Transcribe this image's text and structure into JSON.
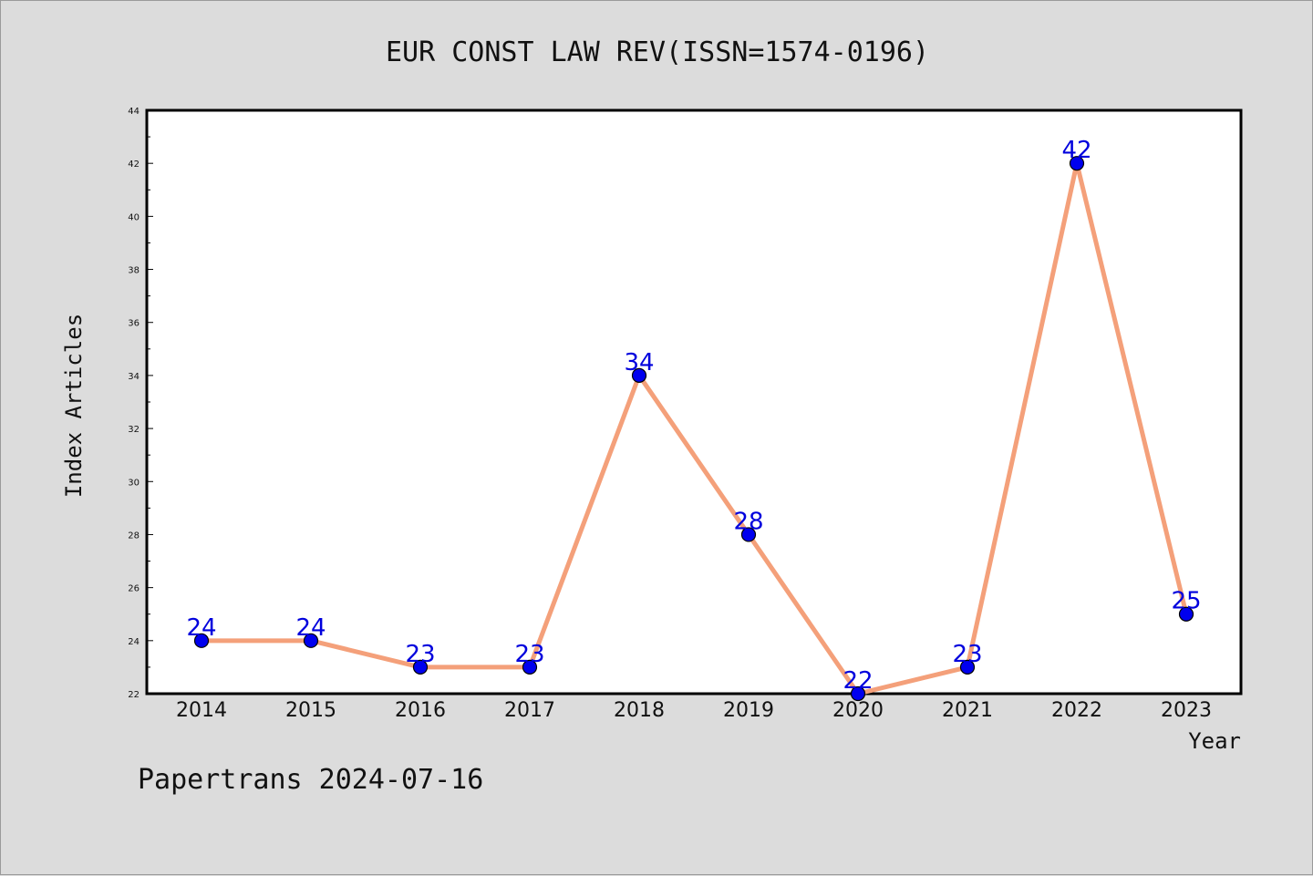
{
  "chart_data": {
    "type": "line",
    "title": "EUR CONST LAW REV(ISSN=1574-0196)",
    "xlabel": "Year",
    "ylabel": "Index Articles",
    "categories": [
      "2014",
      "2015",
      "2016",
      "2017",
      "2018",
      "2019",
      "2020",
      "2021",
      "2022",
      "2023"
    ],
    "series": [
      {
        "values": [
          24,
          24,
          23,
          23,
          34,
          28,
          22,
          23,
          42,
          25
        ]
      }
    ],
    "ylim": [
      22,
      44
    ],
    "yticks": [
      22,
      24,
      26,
      28,
      30,
      32,
      34,
      36,
      38,
      40,
      42,
      44
    ],
    "grid": false,
    "legend": "none",
    "line_color": "#f4a07a",
    "marker_color": "#0000ee",
    "label_color": "#0000dd"
  },
  "footer": "Papertrans 2024-07-16"
}
